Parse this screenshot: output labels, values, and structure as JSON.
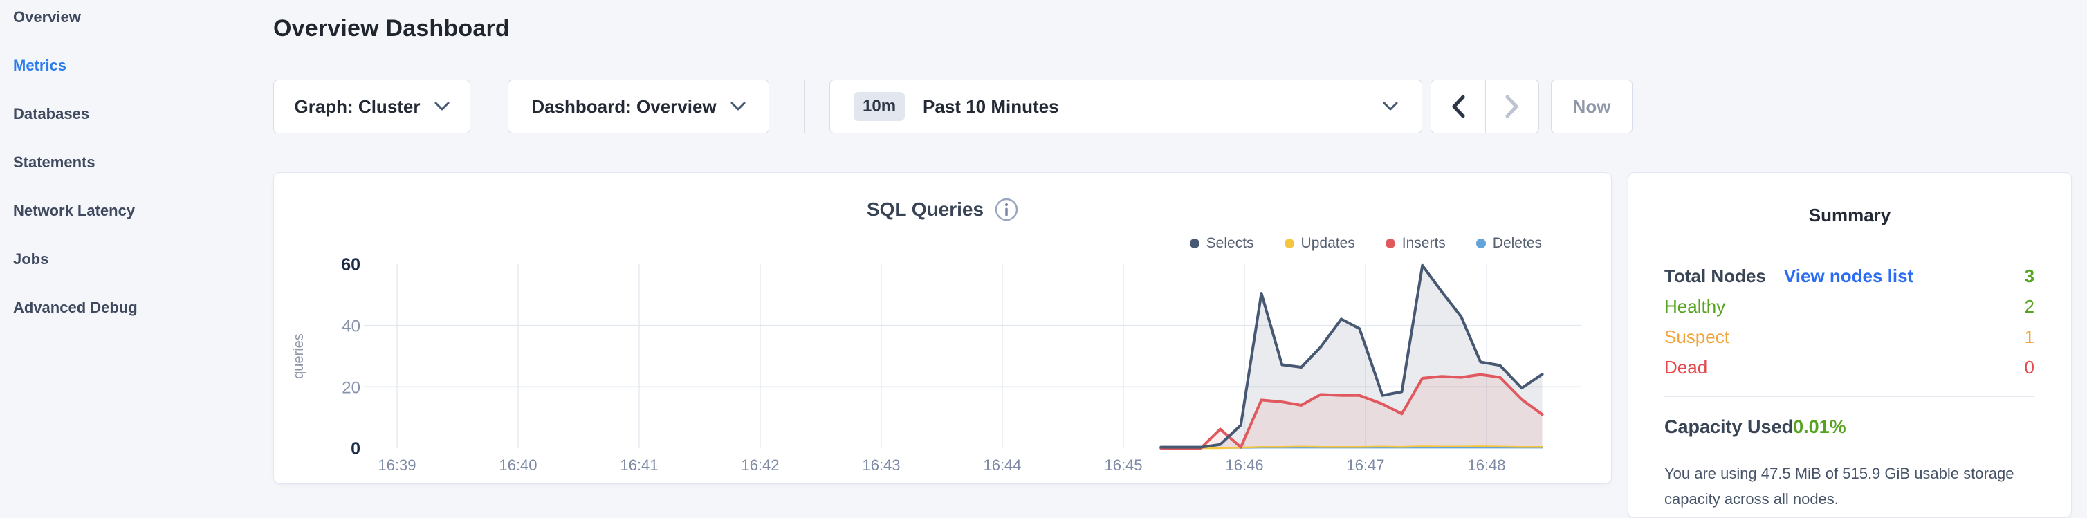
{
  "sidebar": {
    "items": [
      {
        "label": "Overview"
      },
      {
        "label": "Metrics",
        "active": true
      },
      {
        "label": "Databases"
      },
      {
        "label": "Statements"
      },
      {
        "label": "Network Latency"
      },
      {
        "label": "Jobs"
      },
      {
        "label": "Advanced Debug"
      }
    ],
    "active_color": "#2b7ce9"
  },
  "header": {
    "title": "Overview Dashboard"
  },
  "controls": {
    "graph_dropdown": {
      "label": "Graph: Cluster"
    },
    "dashboard_dropdown": {
      "label": "Dashboard: Overview"
    },
    "time_selector": {
      "badge": "10m",
      "label": "Past 10 Minutes"
    },
    "now_button": {
      "label": "Now"
    }
  },
  "chart_data": {
    "type": "area",
    "title": "SQL Queries",
    "ylabel": "queries",
    "x_ticks": [
      "16:39",
      "16:40",
      "16:41",
      "16:42",
      "16:43",
      "16:44",
      "16:45",
      "16:46",
      "16:47",
      "16:48"
    ],
    "y_ticks": [
      0,
      20,
      40,
      60
    ],
    "ylim": [
      0,
      60
    ],
    "grid": "on",
    "legend_position": "top-right",
    "x_unit": "minutes after 16:39, samples every ~10s",
    "x": [
      6.31,
      6.64,
      6.8,
      6.97,
      7.14,
      7.31,
      7.47,
      7.63,
      7.8,
      7.95,
      8.14,
      8.3,
      8.47,
      8.63,
      8.79,
      8.95,
      9.11,
      9.29,
      9.46
    ],
    "series": [
      {
        "name": "Selects",
        "color": "#475872",
        "fill": "rgba(71,88,114,0.12)",
        "values": [
          0.3,
          0.3,
          1.2,
          7.5,
          50.5,
          27.2,
          26.4,
          33.0,
          42.1,
          39.0,
          17.2,
          18.4,
          59.6,
          51.0,
          42.9,
          28.1,
          27.0,
          19.6,
          24.1
        ]
      },
      {
        "name": "Updates",
        "color": "#f5c53e",
        "fill": null,
        "values": [
          0,
          0,
          0,
          0.2,
          0.4,
          0.4,
          0.5,
          0.4,
          0.4,
          0.4,
          0.5,
          0.4,
          0.6,
          0.5,
          0.5,
          0.6,
          0.5,
          0.4,
          0.4
        ]
      },
      {
        "name": "Inserts",
        "color": "#e0595e",
        "fill": "rgba(224,89,94,0.10)",
        "values": [
          0,
          0,
          6.2,
          0.3,
          15.7,
          15.1,
          14.0,
          17.5,
          17.2,
          17.2,
          14.4,
          11.2,
          22.8,
          23.4,
          23.1,
          24.0,
          23.1,
          15.9,
          11.0
        ]
      },
      {
        "name": "Deletes",
        "color": "#62a4d9",
        "fill": null,
        "values": [
          0.1,
          0.1,
          0.1,
          0.1,
          0.2,
          0.2,
          0.2,
          0.2,
          0.2,
          0.2,
          0.2,
          0.2,
          0.2,
          0.2,
          0.2,
          0.2,
          0.2,
          0.2,
          0.2
        ]
      }
    ]
  },
  "summary": {
    "title": "Summary",
    "rows": [
      {
        "label": "Total Nodes",
        "link": "View nodes list",
        "value": "3",
        "color": "green"
      },
      {
        "label": "Healthy",
        "value": "2",
        "color": "green"
      },
      {
        "label": "Suspect",
        "value": "1",
        "color": "orange"
      },
      {
        "label": "Dead",
        "value": "0",
        "color": "red"
      }
    ],
    "capacity": {
      "label": "Capacity Used",
      "value": "0.01%",
      "description": "You are using 47.5 MiB of 515.9 GiB usable storage capacity across all nodes."
    },
    "colors": {
      "green": "#55a31e",
      "orange": "#f0a43a",
      "red": "#e5484d",
      "link_blue": "#2b6cf2"
    }
  }
}
